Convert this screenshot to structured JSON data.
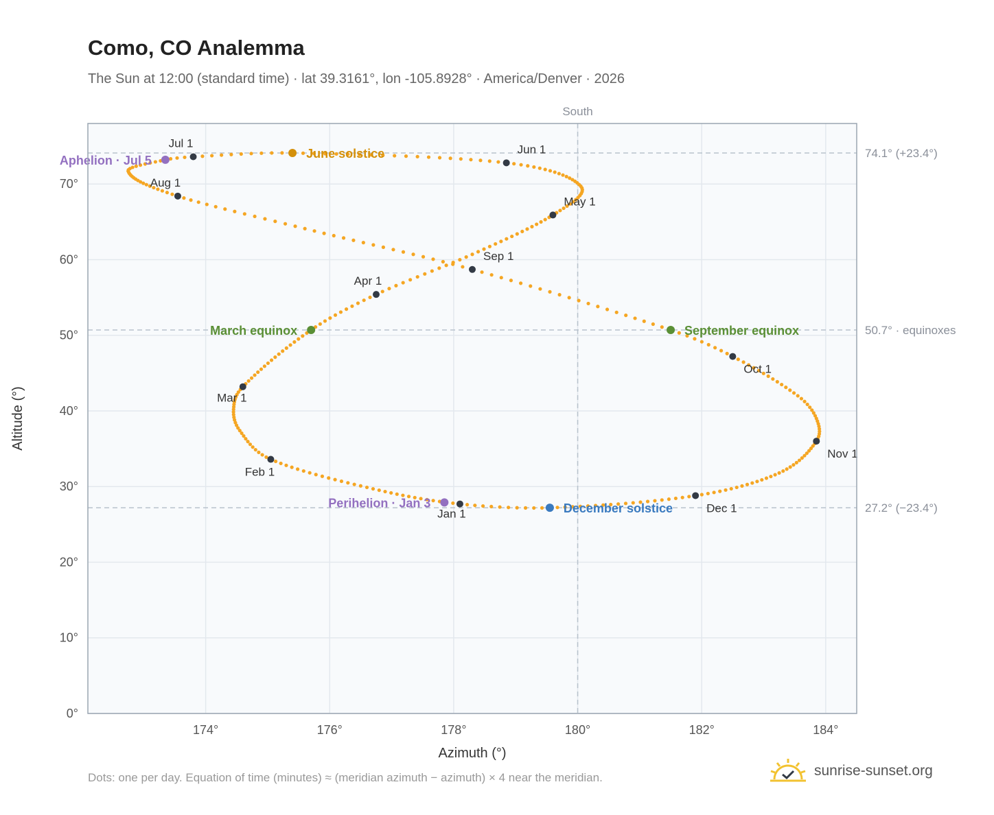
{
  "header": {
    "title": "Como, CO Analemma",
    "subtitle": "The Sun at 12:00 (standard time) · lat 39.3161°, lon -105.8928° · America/Denver · 2026"
  },
  "footer": {
    "note": "Dots: one per day. Equation of time (minutes) ≈ (meridian azimuth − azimuth) × 4 near the meridian.",
    "brand": "sunrise-sunset.org"
  },
  "icons": {
    "brand_logo": "sun-check-icon"
  },
  "colors": {
    "path": "#f5a623",
    "month_marker": "#333a45",
    "june_solstice": "#d4900a",
    "december_solstice": "#3a7abf",
    "equinox": "#5a8f35",
    "apsis": "#9370c0",
    "reference_line": "#b8c2cc",
    "plot_background": "#f8fafc"
  },
  "chart_data": {
    "type": "scatter",
    "xlabel": "Azimuth (°)",
    "ylabel": "Altitude (°)",
    "xlim": [
      172.1,
      184.5
    ],
    "ylim": [
      0,
      78
    ],
    "xticks": [
      174,
      176,
      178,
      180,
      182,
      184
    ],
    "yticks": [
      0,
      10,
      20,
      30,
      40,
      50,
      60,
      70
    ],
    "x_tick_suffix": "°",
    "y_tick_suffix": "°",
    "grid": true,
    "reference_lines": {
      "vertical": [
        {
          "x": 180,
          "label": "South"
        }
      ],
      "horizontal": [
        {
          "y": 74.1,
          "label": "74.1° (+23.4°)"
        },
        {
          "y": 50.7,
          "label": "50.7° · equinoxes"
        },
        {
          "y": 27.2,
          "label": "27.2° (−23.4°)"
        }
      ]
    },
    "path_anchors": [
      {
        "date": "2026-01-01",
        "az": 178.1,
        "alt": 27.7
      },
      {
        "date": "2026-01-15",
        "az": 176.7,
        "alt": 29.7
      },
      {
        "date": "2026-02-01",
        "az": 175.05,
        "alt": 33.6
      },
      {
        "date": "2026-02-12",
        "az": 174.55,
        "alt": 37.4
      },
      {
        "date": "2026-02-20",
        "az": 174.45,
        "alt": 40.2
      },
      {
        "date": "2026-03-01",
        "az": 174.6,
        "alt": 43.2
      },
      {
        "date": "2026-03-20",
        "az": 175.7,
        "alt": 50.7
      },
      {
        "date": "2026-04-01",
        "az": 176.75,
        "alt": 55.4
      },
      {
        "date": "2026-04-15",
        "az": 178.3,
        "alt": 60.7
      },
      {
        "date": "2026-05-01",
        "az": 179.6,
        "alt": 65.9
      },
      {
        "date": "2026-05-15",
        "az": 180.05,
        "alt": 69.7
      },
      {
        "date": "2026-06-01",
        "az": 178.85,
        "alt": 72.8
      },
      {
        "date": "2026-06-21",
        "az": 175.4,
        "alt": 74.1
      },
      {
        "date": "2026-07-01",
        "az": 173.8,
        "alt": 73.6
      },
      {
        "date": "2026-07-05",
        "az": 173.35,
        "alt": 73.2
      },
      {
        "date": "2026-07-15",
        "az": 172.75,
        "alt": 71.7
      },
      {
        "date": "2026-08-01",
        "az": 173.55,
        "alt": 68.4
      },
      {
        "date": "2026-08-15",
        "az": 175.6,
        "alt": 64.1
      },
      {
        "date": "2026-09-01",
        "az": 178.3,
        "alt": 58.7
      },
      {
        "date": "2026-09-22",
        "az": 181.5,
        "alt": 50.7
      },
      {
        "date": "2026-10-01",
        "az": 182.5,
        "alt": 47.2
      },
      {
        "date": "2026-10-15",
        "az": 183.55,
        "alt": 42.0
      },
      {
        "date": "2026-10-23",
        "az": 183.85,
        "alt": 39.0
      },
      {
        "date": "2026-11-01",
        "az": 183.85,
        "alt": 36.0
      },
      {
        "date": "2026-11-15",
        "az": 183.25,
        "alt": 31.8
      },
      {
        "date": "2026-12-01",
        "az": 181.9,
        "alt": 28.8
      },
      {
        "date": "2026-12-21",
        "az": 179.55,
        "alt": 27.2
      },
      {
        "date": "2027-01-01",
        "az": 178.1,
        "alt": 27.7
      }
    ],
    "month_markers": [
      {
        "label": "Jan 1",
        "az": 178.1,
        "alt": 27.7,
        "dx": -12,
        "dy": 20
      },
      {
        "label": "Feb 1",
        "az": 175.05,
        "alt": 33.6,
        "dx": -16,
        "dy": 24
      },
      {
        "label": "Mar 1",
        "az": 174.6,
        "alt": 43.2,
        "dx": -16,
        "dy": 22
      },
      {
        "label": "Apr 1",
        "az": 176.75,
        "alt": 55.4,
        "dx": -12,
        "dy": -14
      },
      {
        "label": "May 1",
        "az": 179.6,
        "alt": 65.9,
        "dx": 16,
        "dy": -14
      },
      {
        "label": "Jun 1",
        "az": 178.85,
        "alt": 72.8,
        "dx": 16,
        "dy": -14
      },
      {
        "label": "Jul 1",
        "az": 173.8,
        "alt": 73.6,
        "dx": -18,
        "dy": -14
      },
      {
        "label": "Aug 1",
        "az": 173.55,
        "alt": 68.4,
        "dx": -18,
        "dy": -14
      },
      {
        "label": "Sep 1",
        "az": 178.3,
        "alt": 58.7,
        "dx": 16,
        "dy": -14
      },
      {
        "label": "Oct 1",
        "az": 182.5,
        "alt": 47.2,
        "dx": 16,
        "dy": 24
      },
      {
        "label": "Nov 1",
        "az": 183.85,
        "alt": 36.0,
        "dx": 16,
        "dy": 24
      },
      {
        "label": "Dec 1",
        "az": 181.9,
        "alt": 28.8,
        "dx": 16,
        "dy": 24
      }
    ],
    "events": [
      {
        "label": "June solstice",
        "az": 175.4,
        "alt": 74.1,
        "color": "#d4900a",
        "anchor": "start",
        "dx": 20,
        "dy": 7
      },
      {
        "label": "December solstice",
        "az": 179.55,
        "alt": 27.2,
        "color": "#3a7abf",
        "anchor": "start",
        "dx": 20,
        "dy": 7
      },
      {
        "label": "March equinox",
        "az": 175.7,
        "alt": 50.7,
        "color": "#5a8f35",
        "anchor": "end",
        "dx": -20,
        "dy": 7
      },
      {
        "label": "September equinox",
        "az": 181.5,
        "alt": 50.7,
        "color": "#5a8f35",
        "anchor": "start",
        "dx": 20,
        "dy": 7
      },
      {
        "label": "Aphelion · Jul 5",
        "az": 173.35,
        "alt": 73.2,
        "color": "#9370c0",
        "anchor": "end",
        "dx": -20,
        "dy": 7
      },
      {
        "label": "Perihelion · Jan 3",
        "az": 177.85,
        "alt": 27.9,
        "color": "#9370c0",
        "anchor": "end",
        "dx": -20,
        "dy": 7
      }
    ]
  }
}
